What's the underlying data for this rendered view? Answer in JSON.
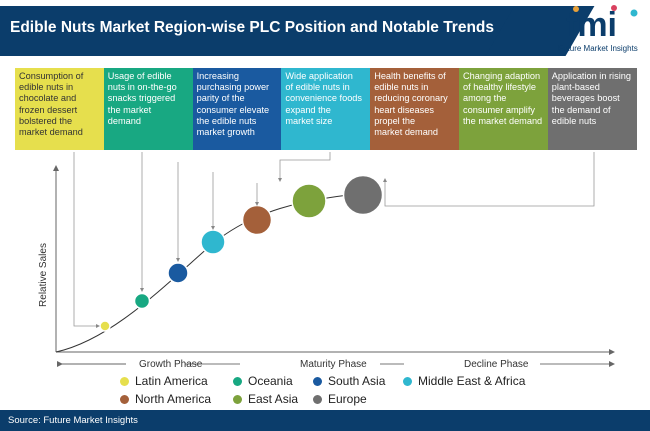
{
  "header": {
    "title": "Edible Nuts Market Region-wise PLC Position and Notable Trends",
    "logo_letters": "fmi",
    "logo_tagline": "Future Market Insights"
  },
  "trends": [
    {
      "lines": [
        "Consumption of",
        "edible nuts in",
        "chocolate and",
        "frozen dessert",
        "bolstered the",
        "market demand"
      ],
      "color": "#e6df4d",
      "text_color": "#333333"
    },
    {
      "lines": [
        "Usage of edible",
        "nuts in on-the-go",
        "snacks triggered",
        "the market",
        "demand"
      ],
      "color": "#18a882",
      "text_color": "#ffffff"
    },
    {
      "lines": [
        "Increasing",
        "purchasing power",
        "parity of the",
        "consumer elevate",
        "the edible nuts",
        "market growth"
      ],
      "color": "#1a5aa0",
      "text_color": "#ffffff"
    },
    {
      "lines": [
        "Wide application",
        "of edible nuts in",
        "convenience foods",
        "expand the",
        "market size"
      ],
      "color": "#2fb7cf",
      "text_color": "#ffffff"
    },
    {
      "lines": [
        "Health  benefits of",
        "edible nuts in",
        "reducing coronary",
        "heart diseases",
        "propel the",
        "market demand"
      ],
      "color": "#a4603a",
      "text_color": "#ffffff"
    },
    {
      "lines": [
        "Changing adaption",
        "of healthy lifestyle",
        "among the",
        "consumer amplify",
        "the market demand"
      ],
      "color": "#7da23c",
      "text_color": "#ffffff"
    },
    {
      "lines": [
        "Application in rising",
        "plant-based",
        "beverages boost",
        "the demand of",
        "edible nuts"
      ],
      "color": "#6f6f6f",
      "text_color": "#ffffff"
    }
  ],
  "chart": {
    "y_axis_label": "Relative Sales",
    "phases": [
      "Growth Phase",
      "Maturity Phase",
      "Decline Phase"
    ]
  },
  "regions": [
    {
      "name": "Latin America",
      "color": "#e6df4d"
    },
    {
      "name": "Oceania",
      "color": "#18a882"
    },
    {
      "name": "South Asia",
      "color": "#1a5aa0"
    },
    {
      "name": "Middle East & Africa",
      "color": "#2fb7cf"
    },
    {
      "name": "North America",
      "color": "#a4603a"
    },
    {
      "name": "East Asia",
      "color": "#7da23c"
    },
    {
      "name": "Europe",
      "color": "#6f6f6f"
    }
  ],
  "footer": {
    "source": "Source: Future Market Insights"
  }
}
